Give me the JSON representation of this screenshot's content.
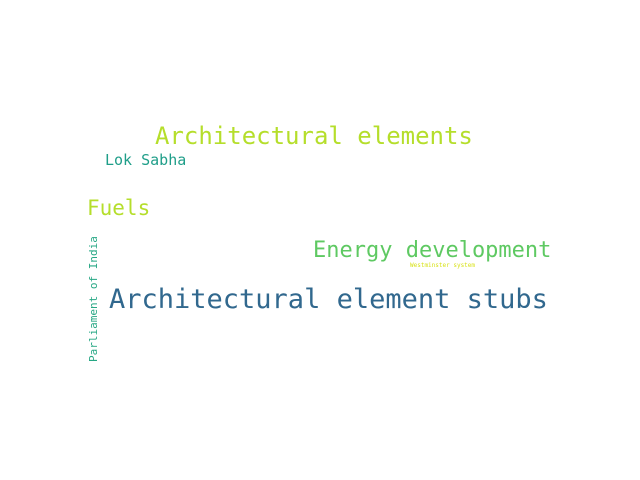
{
  "words": [
    {
      "text": "Architectural elements",
      "color": "#b5de2b"
    },
    {
      "text": "Lok Sabha",
      "color": "#1f9e89"
    },
    {
      "text": "Fuels",
      "color": "#b5de2b"
    },
    {
      "text": "Energy development",
      "color": "#5ec962"
    },
    {
      "text": "Westminster system",
      "color": "#d8e219"
    },
    {
      "text": "Architectural element stubs",
      "color": "#31688e"
    },
    {
      "text": "Parliament of India",
      "color": "#26a784"
    }
  ]
}
